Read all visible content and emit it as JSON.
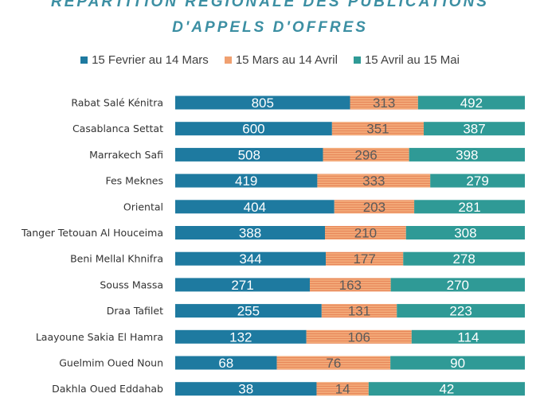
{
  "colors": {
    "series1": "#1e7aa0",
    "series2": "#f0a070",
    "series3": "#2f9a96",
    "title": "#3c8fa3"
  },
  "chart_data": {
    "type": "bar",
    "orientation": "horizontal",
    "stacked": "100%",
    "title_lines": [
      "REPARTITION REGIONALE DES PUBLICATIONS",
      "D'APPELS D'OFFRES"
    ],
    "legend_position": "top",
    "categories": [
      "Rabat Salé Kénitra",
      "Casablanca Settat",
      "Marrakech Safi",
      "Fes Meknes",
      "Oriental",
      "Tanger Tetouan Al Houceima",
      "Beni Mellal Khnifra",
      "Souss Massa",
      "Draa Tafilet",
      "Laayoune Sakia El Hamra",
      "Guelmim Oued Noun",
      "Dakhla Oued Eddahab"
    ],
    "series": [
      {
        "name": "15 Fevrier au 14 Mars",
        "values": [
          805,
          600,
          508,
          419,
          404,
          388,
          344,
          271,
          255,
          132,
          68,
          38
        ]
      },
      {
        "name": "15 Mars au 14 Avril",
        "values": [
          313,
          351,
          296,
          333,
          203,
          210,
          177,
          163,
          131,
          106,
          76,
          14
        ]
      },
      {
        "name": "15 Avril au 15 Mai",
        "values": [
          492,
          387,
          398,
          279,
          281,
          308,
          278,
          270,
          223,
          114,
          90,
          42
        ]
      }
    ]
  }
}
